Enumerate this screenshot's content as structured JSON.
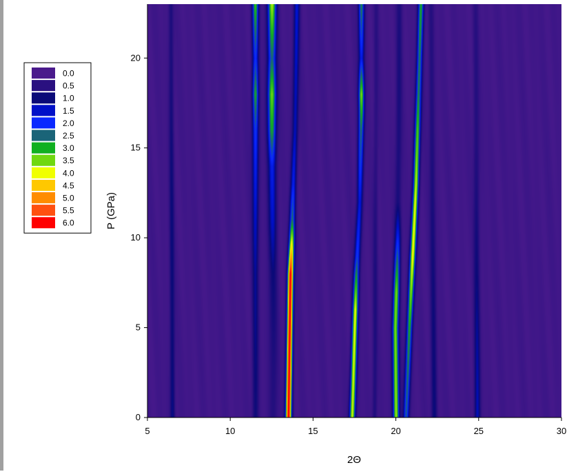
{
  "chart_data": {
    "type": "heatmap",
    "title": "",
    "xlabel": "2Θ",
    "ylabel": "P (GPa)",
    "xlim": [
      5,
      30
    ],
    "ylim": [
      0,
      23
    ],
    "x_ticks": [
      5,
      10,
      15,
      20,
      25,
      30
    ],
    "y_ticks": [
      0,
      5,
      10,
      15,
      20
    ],
    "grid": false,
    "legend_position": "left",
    "colorscale": [
      {
        "label": "0.0",
        "value": 0.0,
        "color": "#4a1a8c"
      },
      {
        "label": "0.5",
        "value": 0.5,
        "color": "#2a1080"
      },
      {
        "label": "1.0",
        "value": 1.0,
        "color": "#0a0a78"
      },
      {
        "label": "1.5",
        "value": 1.5,
        "color": "#0010c8"
      },
      {
        "label": "2.0",
        "value": 2.0,
        "color": "#0a28ff"
      },
      {
        "label": "2.5",
        "value": 2.5,
        "color": "#1a6478"
      },
      {
        "label": "3.0",
        "value": 3.0,
        "color": "#10b020"
      },
      {
        "label": "3.5",
        "value": 3.5,
        "color": "#70d810"
      },
      {
        "label": "4.0",
        "value": 4.0,
        "color": "#f0ff00"
      },
      {
        "label": "4.5",
        "value": 4.5,
        "color": "#ffc800"
      },
      {
        "label": "5.0",
        "value": 5.0,
        "color": "#ff8c00"
      },
      {
        "label": "5.5",
        "value": 5.5,
        "color": "#ff5010"
      },
      {
        "label": "6.0",
        "value": 6.0,
        "color": "#ff0000"
      }
    ],
    "background_intensity": 0.15,
    "peaks": [
      {
        "center": [
          [
            0,
            13.5
          ],
          [
            8,
            13.62
          ],
          [
            10,
            13.7
          ],
          [
            12,
            13.75
          ],
          [
            16,
            13.9
          ],
          [
            23,
            14.0
          ]
        ],
        "width": 0.12,
        "amp": [
          [
            0,
            6.0
          ],
          [
            8,
            6.0
          ],
          [
            9.5,
            4.2
          ],
          [
            11,
            2.4
          ],
          [
            13,
            1.6
          ],
          [
            16,
            1.3
          ],
          [
            23,
            1.4
          ]
        ]
      },
      {
        "center": [
          [
            0,
            17.35
          ],
          [
            5,
            17.5
          ],
          [
            8,
            17.6
          ],
          [
            12,
            17.8
          ],
          [
            17,
            17.9
          ],
          [
            23,
            17.9
          ]
        ],
        "width": 0.12,
        "amp": [
          [
            0,
            3.8
          ],
          [
            6,
            3.8
          ],
          [
            9,
            2.0
          ],
          [
            12,
            1.5
          ],
          [
            16,
            2.4
          ],
          [
            18,
            3.4
          ],
          [
            20,
            1.6
          ],
          [
            23,
            2.6
          ]
        ]
      },
      {
        "center": [
          [
            0,
            20.0
          ],
          [
            5,
            19.95
          ],
          [
            10,
            20.1
          ],
          [
            23,
            20.2
          ]
        ],
        "width": 0.13,
        "amp": [
          [
            0,
            3.6
          ],
          [
            7,
            3.3
          ],
          [
            10,
            1.7
          ],
          [
            12,
            0.7
          ],
          [
            23,
            0.5
          ]
        ]
      },
      {
        "center": [
          [
            0,
            20.6
          ],
          [
            5,
            20.8
          ],
          [
            9,
            21.0
          ],
          [
            13,
            21.2
          ],
          [
            18,
            21.35
          ],
          [
            23,
            21.5
          ]
        ],
        "width": 0.12,
        "amp": [
          [
            0,
            2.2
          ],
          [
            5,
            2.8
          ],
          [
            9,
            4.0
          ],
          [
            12,
            3.8
          ],
          [
            16,
            3.2
          ],
          [
            18,
            2.6
          ],
          [
            20,
            2.4
          ],
          [
            23,
            2.8
          ]
        ]
      },
      {
        "center": [
          [
            0,
            12.6
          ],
          [
            16,
            12.5
          ],
          [
            23,
            12.5
          ]
        ],
        "width": 0.18,
        "amp": [
          [
            0,
            0.5
          ],
          [
            8,
            0.8
          ],
          [
            11,
            1.3
          ],
          [
            14,
            1.6
          ],
          [
            16,
            2.8
          ],
          [
            18,
            3.4
          ],
          [
            20,
            2.4
          ],
          [
            23,
            3.6
          ]
        ]
      },
      {
        "center": [
          [
            0,
            11.5
          ],
          [
            23,
            11.5
          ]
        ],
        "width": 0.13,
        "amp": [
          [
            0,
            0.8
          ],
          [
            8,
            1.0
          ],
          [
            12,
            1.5
          ],
          [
            16,
            2.0
          ],
          [
            18,
            2.8
          ],
          [
            20,
            1.8
          ],
          [
            23,
            3.0
          ]
        ]
      },
      {
        "center": [
          [
            0,
            6.5
          ],
          [
            23,
            6.4
          ]
        ],
        "width": 0.1,
        "amp": [
          [
            0,
            1.0
          ],
          [
            23,
            0.6
          ]
        ]
      },
      {
        "center": [
          [
            0,
            24.9
          ],
          [
            23,
            24.8
          ]
        ],
        "width": 0.12,
        "amp": [
          [
            0,
            1.3
          ],
          [
            8,
            0.8
          ],
          [
            23,
            0.3
          ]
        ]
      },
      {
        "center": [
          [
            0,
            22.3
          ],
          [
            23,
            22.1
          ]
        ],
        "width": 0.12,
        "amp": [
          [
            0,
            0.9
          ],
          [
            23,
            0.4
          ]
        ]
      },
      {
        "center": [
          [
            0,
            18.7
          ],
          [
            23,
            18.8
          ]
        ],
        "width": 0.1,
        "amp": [
          [
            0,
            0.6
          ],
          [
            23,
            0.3
          ]
        ]
      }
    ]
  }
}
